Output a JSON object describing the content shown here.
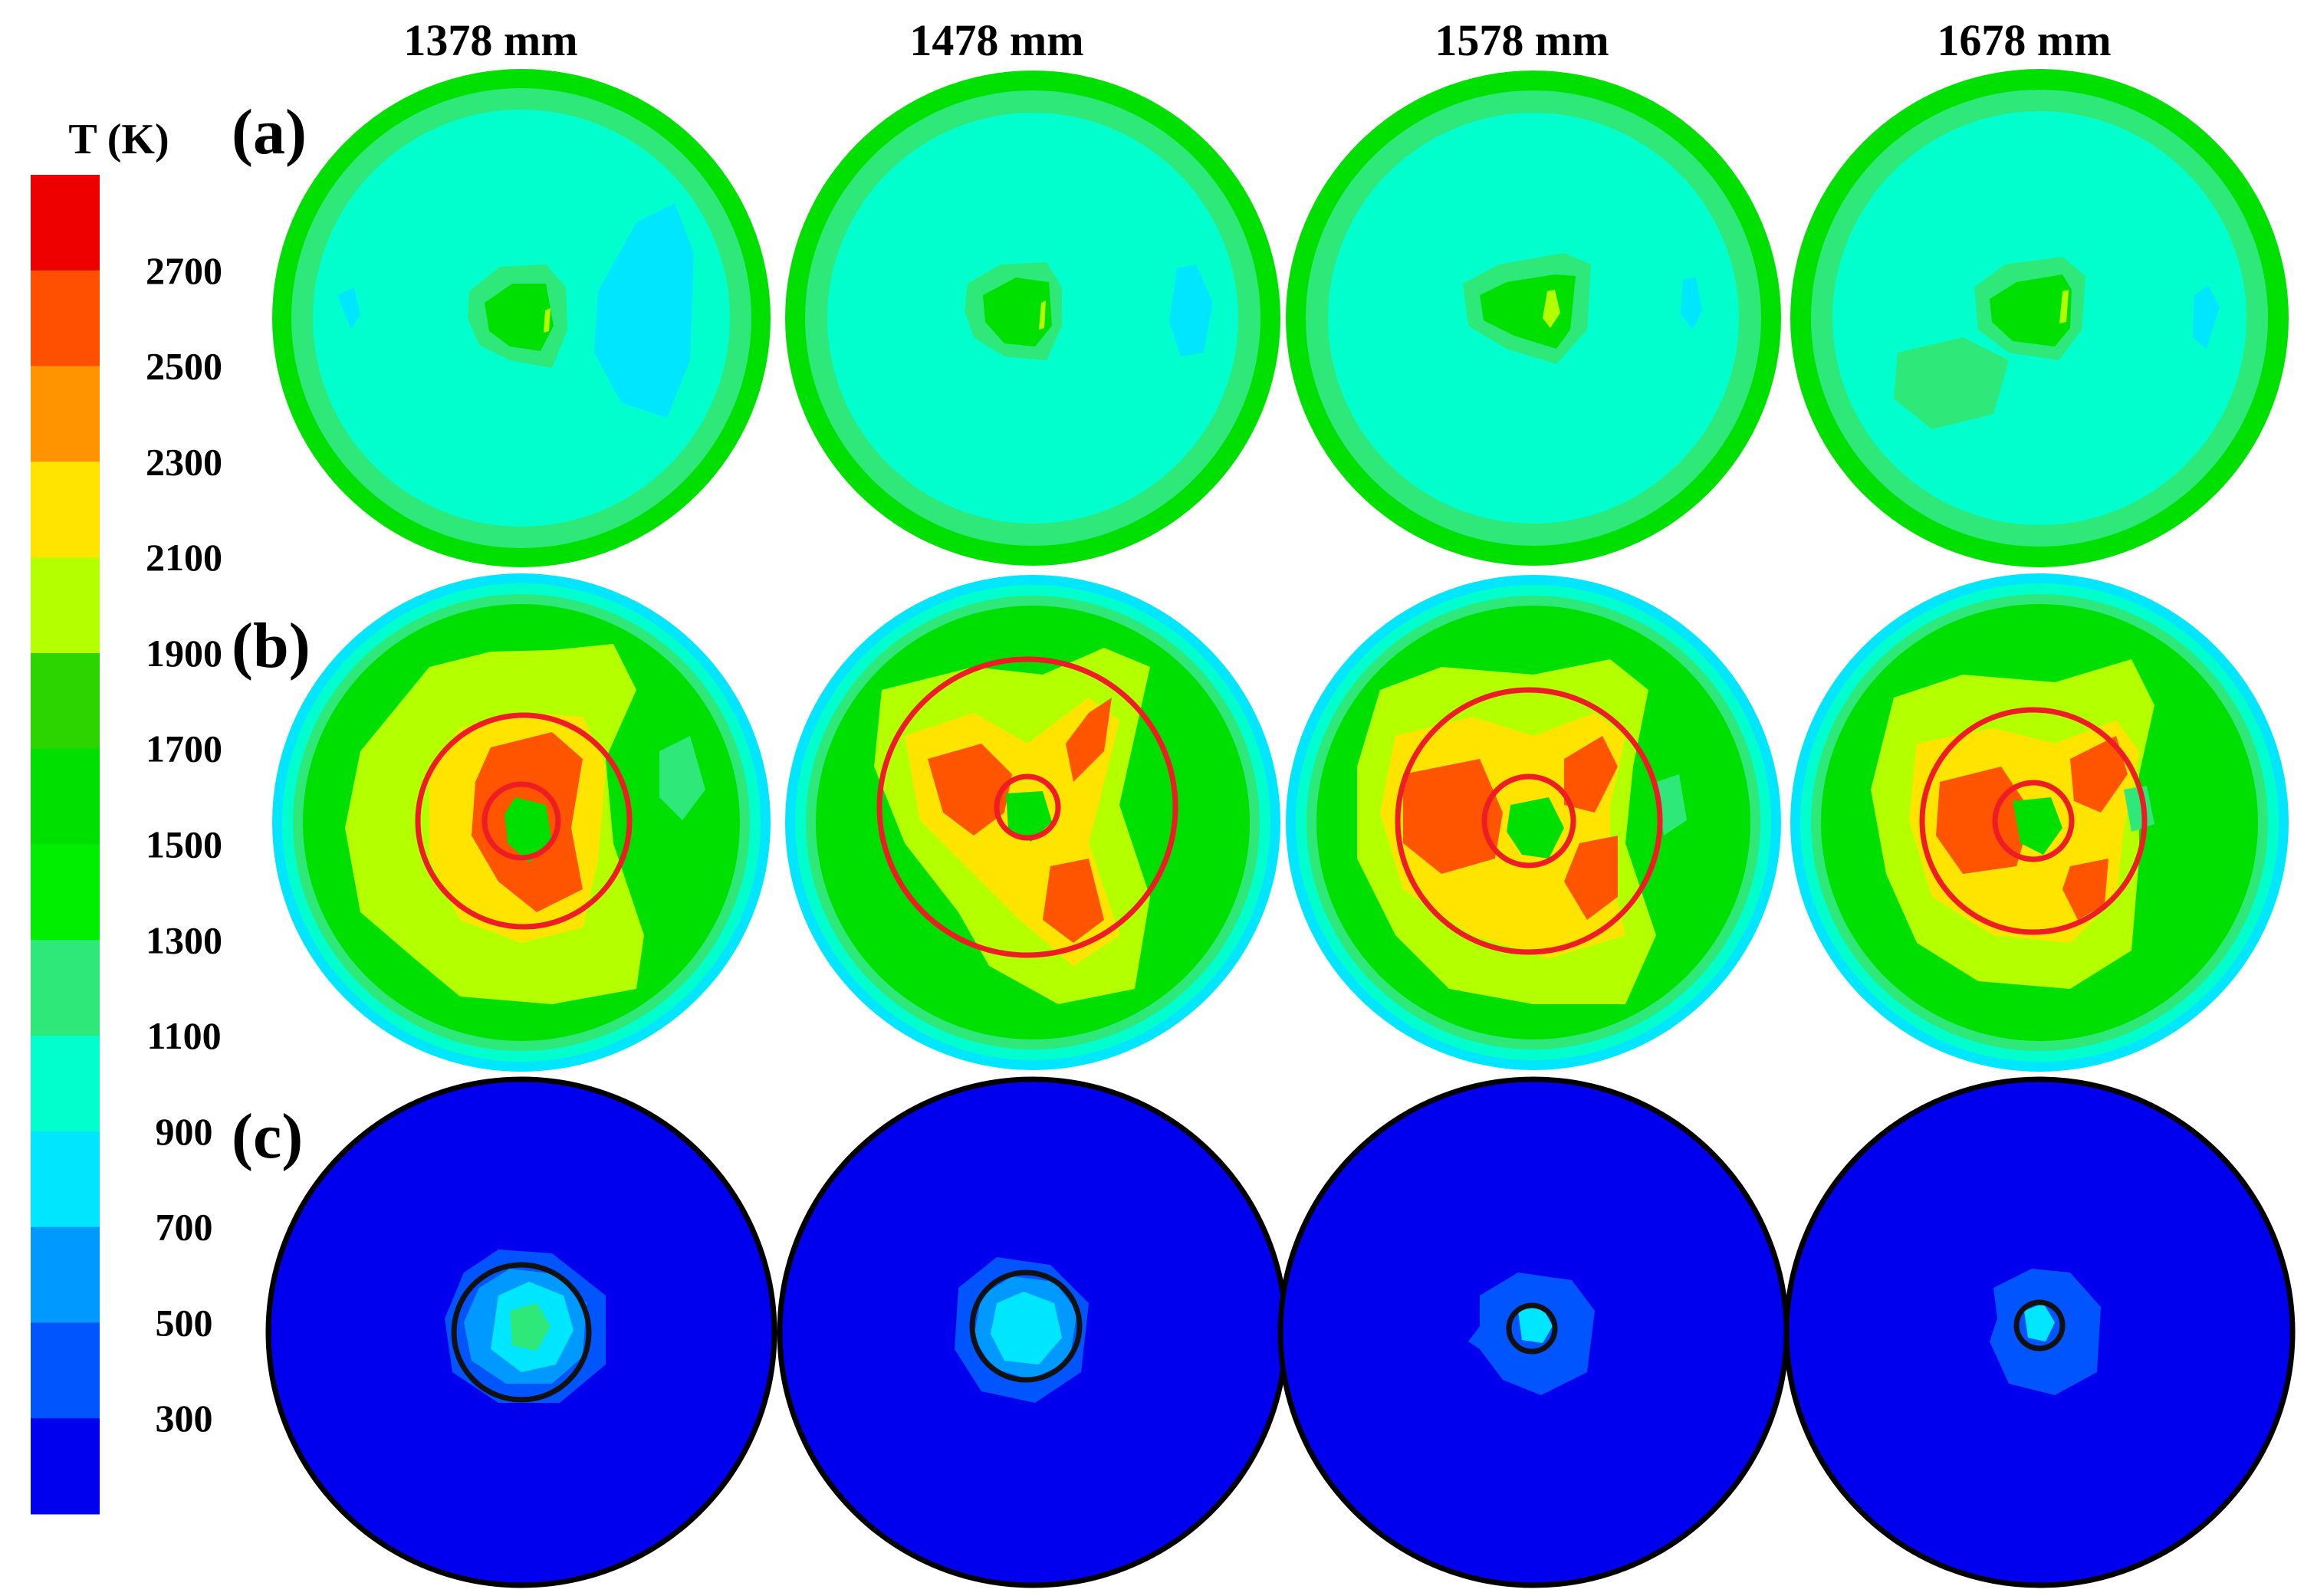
{
  "figure": {
    "columns": [
      "1378 mm",
      "1478 mm",
      "1578 mm",
      "1678 mm"
    ],
    "rows": [
      "(a)",
      "(b)",
      "(c)"
    ]
  },
  "colorbar": {
    "title": "T (K)",
    "ticks": [
      "2700",
      "2500",
      "2300",
      "2100",
      "1900",
      "1700",
      "1500",
      "1300",
      "1100",
      "900",
      "700",
      "500",
      "300"
    ],
    "colors": [
      "#ee0000",
      "#ff4f00",
      "#ff9300",
      "#ffe400",
      "#b4ff00",
      "#2cd400",
      "#00e000",
      "#00ee00",
      "#2ee87a",
      "#00ffcc",
      "#00e6ff",
      "#0099ff",
      "#0055ff",
      "#0000ee"
    ]
  },
  "palette": {
    "red": "#ee0000",
    "orange_red": "#ff5500",
    "orange": "#ff9300",
    "yellow": "#ffe400",
    "yellow_green": "#b4ff00",
    "green": "#00e000",
    "mint": "#2ee87a",
    "aqua": "#00ffcc",
    "cyan": "#00e6ff",
    "light_blue": "#0099ff",
    "mid_blue": "#0055ff",
    "blue": "#0000ee",
    "marker_red": "#ee1c24",
    "marker_black": "#111111"
  }
}
